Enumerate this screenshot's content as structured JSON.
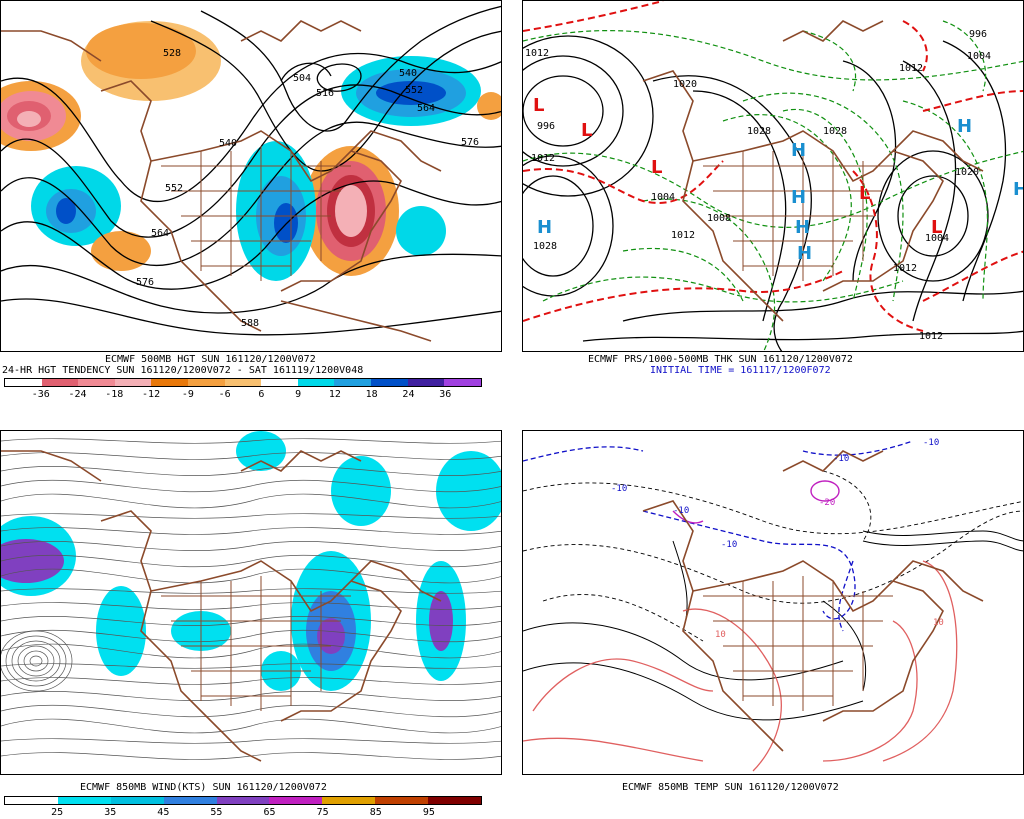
{
  "panels": {
    "top_left": {
      "caption_line1": "ECMWF 500MB HGT SUN 161120/1200V072",
      "caption_line2": "24-HR HGT TENDENCY SUN 161120/1200V072 - SAT 161119/1200V048",
      "colorbar": {
        "labels": [
          "-36",
          "-24",
          "-18",
          "-12",
          "-9",
          "-6",
          "6",
          "9",
          "12",
          "18",
          "24",
          "36"
        ],
        "colors": [
          "#ffffff",
          "#e06070",
          "#f08a94",
          "#f4b0b6",
          "#e8780a",
          "#f4a040",
          "#f8c070",
          "#ffffff",
          "#00d8e8",
          "#20a0e0",
          "#0050c8",
          "#4020a0",
          "#a040e0"
        ]
      },
      "contour_labels": [
        "528",
        "540",
        "552",
        "564",
        "576",
        "588",
        "504",
        "516",
        "540",
        "552",
        "564",
        "576"
      ]
    },
    "top_right": {
      "caption_line1": "ECMWF PRS/1000-500MB THK SUN 161120/1200V072",
      "caption_line2": "INITIAL TIME = 161117/1200F072",
      "pressure_labels": [
        "1012",
        "996",
        "1012",
        "1020",
        "1028",
        "1028",
        "1004",
        "1012",
        "1028",
        "1012",
        "1020",
        "1012",
        "1008",
        "1004",
        "996",
        "1004",
        "1012"
      ],
      "high_symbol": "H",
      "low_symbol": "L"
    },
    "bottom_left": {
      "caption_line1": "ECMWF 850MB WIND(KTS) SUN 161120/1200V072",
      "colorbar": {
        "labels": [
          "25",
          "35",
          "45",
          "55",
          "65",
          "75",
          "85",
          "95"
        ],
        "colors": [
          "#ffffff",
          "#00e0f0",
          "#00c0e0",
          "#3080e0",
          "#8040c0",
          "#c020c0",
          "#e0a000",
          "#c04000",
          "#800000"
        ]
      }
    },
    "bottom_right": {
      "caption_line1": "ECMWF 850MB TEMP SUN 161120/1200V072",
      "temp_labels": [
        "-10",
        "-10",
        "-10",
        "-20",
        "-10",
        "-10",
        "10",
        "10"
      ]
    }
  },
  "colors": {
    "coastline": "#8b4a2b",
    "contour": "#000000",
    "thickness_cold": "#1010c8",
    "thickness_warm": "#e01010",
    "isobar_alt": "#109010",
    "high": "#1a8fd0",
    "low": "#e01010"
  }
}
